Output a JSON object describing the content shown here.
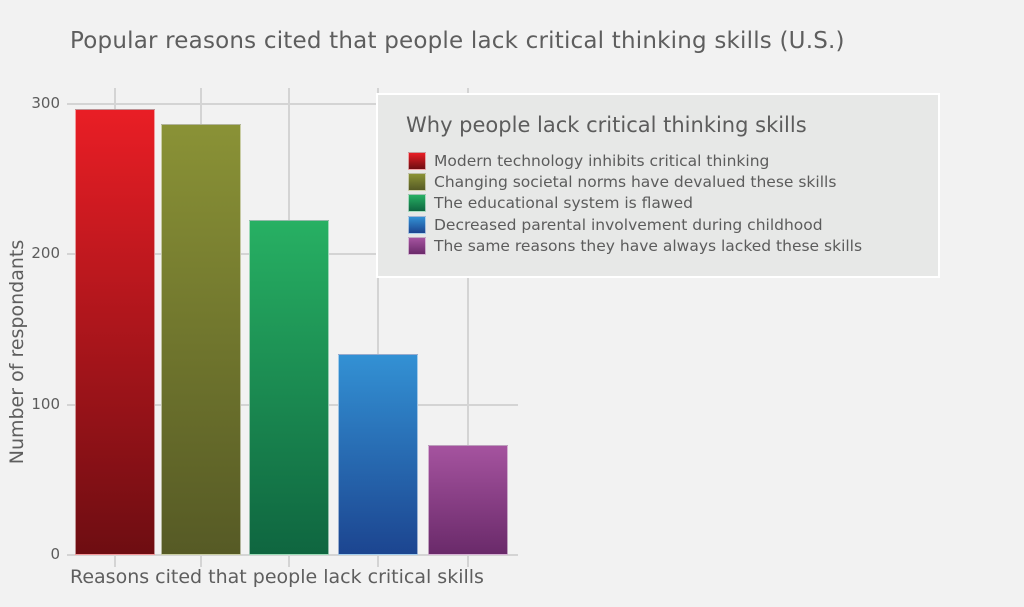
{
  "chart_data": {
    "type": "bar",
    "title": "Popular reasons cited that people lack critical thinking skills (U.S.)",
    "xlabel": "Reasons cited that people lack critical skills",
    "ylabel": "Number of respondants",
    "ylim": [
      0,
      300
    ],
    "yticks": [
      0,
      100,
      200,
      300
    ],
    "grid": true,
    "legend_position": "upper right (inside)",
    "legend_title": "Why people lack critical thinking skills",
    "categories": [
      "Modern technology inhibits critical thinking",
      "Changing societal norms have devalued these skills",
      "The educational system is flawed",
      "Decreased parental involvement during childhood",
      "The same reasons they have always lacked these skills"
    ],
    "values": [
      297,
      287,
      223,
      134,
      73
    ],
    "colors": [
      "#e91e25",
      "#8a9236",
      "#27b063",
      "#3391d4",
      "#a5539f"
    ],
    "colors_dark": [
      "#6e0d12",
      "#565a25",
      "#0f6640",
      "#1c4590",
      "#6a2a6a"
    ]
  },
  "labels": {
    "title": "Popular reasons cited that people lack critical thinking skills (U.S.)",
    "xlabel": "Reasons cited that people lack critical skills",
    "ylabel": "Number of respondants",
    "yticks": [
      "0",
      "100",
      "200",
      "300"
    ],
    "legend_title": "Why people lack critical thinking skills",
    "legend_items": [
      "Modern technology inhibits critical thinking",
      "Changing societal norms have devalued these skills",
      "The educational system is flawed",
      "Decreased parental involvement during childhood",
      "The same reasons they have always lacked these skills"
    ]
  }
}
